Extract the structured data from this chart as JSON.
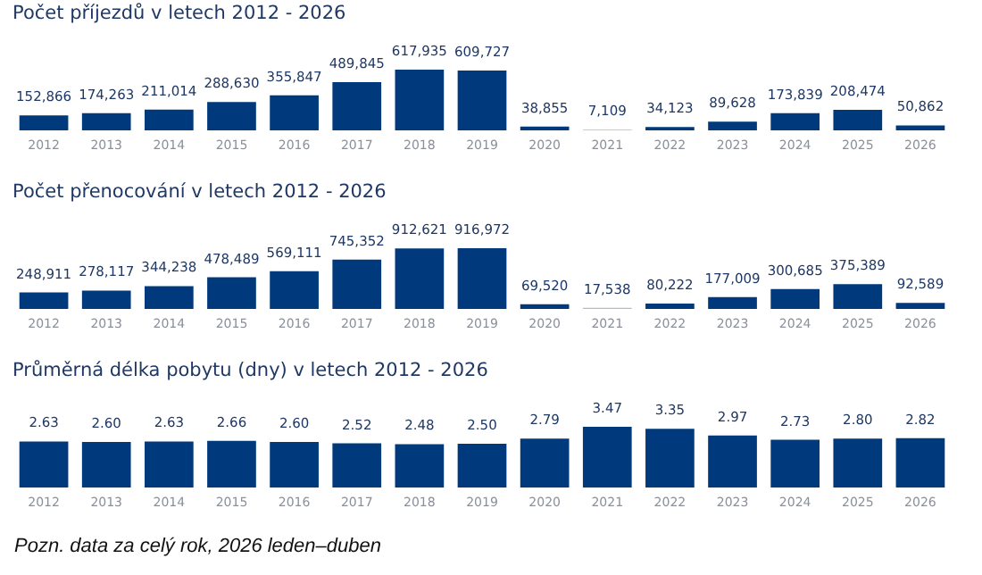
{
  "chart_data": [
    {
      "type": "bar",
      "title": "Počet příjezdů v letech 2012 - 2026",
      "categories": [
        "2012",
        "2013",
        "2014",
        "2015",
        "2016",
        "2017",
        "2018",
        "2019",
        "2020",
        "2021",
        "2022",
        "2023",
        "2024",
        "2025",
        "2026"
      ],
      "values": [
        152866,
        174263,
        211014,
        288630,
        355847,
        489845,
        617935,
        609727,
        38855,
        7109,
        34123,
        89628,
        173839,
        208474,
        50862
      ],
      "value_labels": [
        "152,866",
        "174,263",
        "211,014",
        "288,630",
        "355,847",
        "489,845",
        "617,935",
        "609,727",
        "38,855",
        "7,109",
        "34,123",
        "89,628",
        "173,839",
        "208,474",
        "50,862"
      ],
      "colors": [
        "#003a7d",
        "#003a7d",
        "#003a7d",
        "#003a7d",
        "#003a7d",
        "#003a7d",
        "#003a7d",
        "#003a7d",
        "#003a7d",
        "#b4bccb",
        "#003a7d",
        "#003a7d",
        "#003a7d",
        "#003a7d",
        "#003a7d"
      ]
    },
    {
      "type": "bar",
      "title": "Počet přenocování v letech 2012 - 2026",
      "categories": [
        "2012",
        "2013",
        "2014",
        "2015",
        "2016",
        "2017",
        "2018",
        "2019",
        "2020",
        "2021",
        "2022",
        "2023",
        "2024",
        "2025",
        "2026"
      ],
      "values": [
        248911,
        278117,
        344238,
        478489,
        569111,
        745352,
        912621,
        916972,
        69520,
        17538,
        80222,
        177009,
        300685,
        375389,
        92589
      ],
      "value_labels": [
        "248,911",
        "278,117",
        "344,238",
        "478,489",
        "569,111",
        "745,352",
        "912,621",
        "916,972",
        "69,520",
        "17,538",
        "80,222",
        "177,009",
        "300,685",
        "375,389",
        "92,589"
      ],
      "colors": [
        "#003a7d",
        "#003a7d",
        "#003a7d",
        "#003a7d",
        "#003a7d",
        "#003a7d",
        "#003a7d",
        "#003a7d",
        "#003a7d",
        "#b4bccb",
        "#003a7d",
        "#003a7d",
        "#003a7d",
        "#003a7d",
        "#003a7d"
      ]
    },
    {
      "type": "bar",
      "title": "Průměrná délka pobytu (dny) v letech 2012 - 2026",
      "categories": [
        "2012",
        "2013",
        "2014",
        "2015",
        "2016",
        "2017",
        "2018",
        "2019",
        "2020",
        "2021",
        "2022",
        "2023",
        "2024",
        "2025",
        "2026"
      ],
      "values": [
        2.63,
        2.6,
        2.63,
        2.66,
        2.6,
        2.52,
        2.48,
        2.5,
        2.79,
        3.47,
        3.35,
        2.97,
        2.73,
        2.8,
        2.82
      ],
      "value_labels": [
        "2.63",
        "2.60",
        "2.63",
        "2.66",
        "2.60",
        "2.52",
        "2.48",
        "2.50",
        "2.79",
        "3.47",
        "3.35",
        "2.97",
        "2.73",
        "2.80",
        "2.82"
      ],
      "color": "#003a7d",
      "annotations": [
        "Pozn. data za celý rok, 2026 leden–duben"
      ]
    }
  ]
}
